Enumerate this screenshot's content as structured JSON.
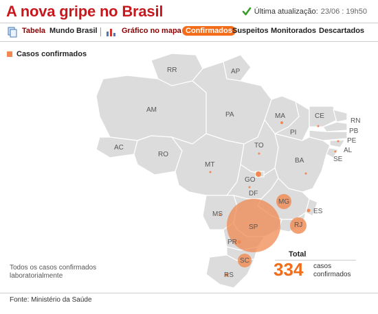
{
  "header": {
    "title": "A nova gripe no Brasil",
    "update_label": "Última atualização:",
    "update_time": "23/06 : 19h50"
  },
  "nav": {
    "tabela": "Tabela",
    "mundo": "Mundo",
    "brasil": "Brasil",
    "grafico": "Gráfico no mapa",
    "confirmados": "Confirmados",
    "suspeitos": "Suspeitos",
    "monitorados": "Monitorados",
    "descartados": "Descartados"
  },
  "legend": {
    "label": "Casos confirmados",
    "color": "#f08850"
  },
  "states": {
    "RR": "RR",
    "AP": "AP",
    "AM": "AM",
    "PA": "PA",
    "MA": "MA",
    "CE": "CE",
    "RN": "RN",
    "PB": "PB",
    "PE": "PE",
    "AL": "AL",
    "SE": "SE",
    "PI": "PI",
    "AC": "AC",
    "RO": "RO",
    "TO": "TO",
    "BA": "BA",
    "MT": "MT",
    "GO": "GO",
    "DF": "DF",
    "MG": "MG",
    "ES": "ES",
    "MS": "MS",
    "SP": "SP",
    "RJ": "RJ",
    "PR": "PR",
    "SC": "SC",
    "RS": "RS"
  },
  "footnote": "Todos os casos confirmados laboratorialmente",
  "total": {
    "label": "Total",
    "value": "334",
    "desc": "casos confirmados"
  },
  "source": "Fonte: Ministério da Saúde",
  "colors": {
    "brand": "#c8181e",
    "accent": "#f26c1a",
    "map_fill": "#dcdcdc",
    "map_stroke": "#ffffff"
  }
}
